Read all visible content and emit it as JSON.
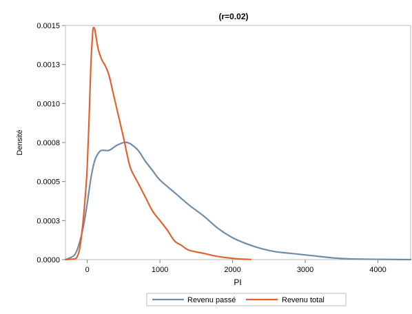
{
  "chart_data": {
    "type": "line",
    "title": "(r=0.02)",
    "xlabel": "PI",
    "ylabel": "Densité",
    "xlim": [
      -300,
      4450
    ],
    "ylim": [
      0,
      0.0015
    ],
    "x_ticks": [
      0,
      1000,
      2000,
      3000,
      4000
    ],
    "x_tick_labels": [
      "0",
      "1000",
      "2000",
      "3000",
      "4000"
    ],
    "y_ticks": [
      0,
      0.00025,
      0.0005,
      0.00075,
      0.001,
      0.00125,
      0.0015
    ],
    "y_tick_labels": [
      "0.0000",
      "0.0003",
      "0.0005",
      "0.0008",
      "0.0010",
      "0.0013",
      "0.0015"
    ],
    "grid": false,
    "legend_position": "bottom",
    "series": [
      {
        "name": "Revenu passé",
        "color": "#6f8bab",
        "points": [
          [
            -300,
            0
          ],
          [
            -200,
            2e-05
          ],
          [
            -150,
            5e-05
          ],
          [
            -100,
            0.00012
          ],
          [
            -50,
            0.00022
          ],
          [
            0,
            0.00036
          ],
          [
            50,
            0.00052
          ],
          [
            100,
            0.00063
          ],
          [
            150,
            0.00068
          ],
          [
            200,
            0.0007
          ],
          [
            300,
            0.0007
          ],
          [
            400,
            0.00073
          ],
          [
            500,
            0.00075
          ],
          [
            550,
            0.00075
          ],
          [
            600,
            0.00074
          ],
          [
            700,
            0.0007
          ],
          [
            800,
            0.00063
          ],
          [
            900,
            0.00057
          ],
          [
            1000,
            0.00051
          ],
          [
            1200,
            0.00043
          ],
          [
            1400,
            0.00035
          ],
          [
            1600,
            0.00028
          ],
          [
            1800,
            0.0002
          ],
          [
            2000,
            0.00014
          ],
          [
            2200,
            0.0001
          ],
          [
            2400,
            7e-05
          ],
          [
            2600,
            5e-05
          ],
          [
            2800,
            4e-05
          ],
          [
            3000,
            3e-05
          ],
          [
            3200,
            2e-05
          ],
          [
            3400,
            1e-05
          ],
          [
            3600,
            5e-06
          ],
          [
            3800,
            3e-06
          ],
          [
            4000,
            2e-06
          ],
          [
            4200,
            1e-06
          ],
          [
            4450,
            0
          ]
        ]
      },
      {
        "name": "Revenu total",
        "color": "#e1622e",
        "points": [
          [
            -300,
            0
          ],
          [
            -200,
            3e-06
          ],
          [
            -150,
            1e-05
          ],
          [
            -120,
            4e-05
          ],
          [
            -100,
            8e-05
          ],
          [
            -80,
            0.00015
          ],
          [
            -50,
            0.00028
          ],
          [
            -20,
            0.00045
          ],
          [
            0,
            0.0006
          ],
          [
            25,
            0.0009
          ],
          [
            50,
            0.00125
          ],
          [
            70,
            0.00142
          ],
          [
            80,
            0.00148
          ],
          [
            100,
            0.00148
          ],
          [
            120,
            0.00143
          ],
          [
            150,
            0.00135
          ],
          [
            200,
            0.00128
          ],
          [
            250,
            0.00124
          ],
          [
            300,
            0.00118
          ],
          [
            350,
            0.00108
          ],
          [
            400,
            0.00098
          ],
          [
            450,
            0.00088
          ],
          [
            500,
            0.00078
          ],
          [
            550,
            0.00067
          ],
          [
            600,
            0.00058
          ],
          [
            700,
            0.00049
          ],
          [
            800,
            0.0004
          ],
          [
            900,
            0.00031
          ],
          [
            1000,
            0.00025
          ],
          [
            1100,
            0.00019
          ],
          [
            1200,
            0.00012
          ],
          [
            1300,
            9e-05
          ],
          [
            1400,
            6e-05
          ],
          [
            1600,
            4e-05
          ],
          [
            1800,
            2e-05
          ],
          [
            2000,
            8e-06
          ],
          [
            2100,
            4e-06
          ],
          [
            2250,
            1e-06
          ]
        ]
      }
    ]
  }
}
